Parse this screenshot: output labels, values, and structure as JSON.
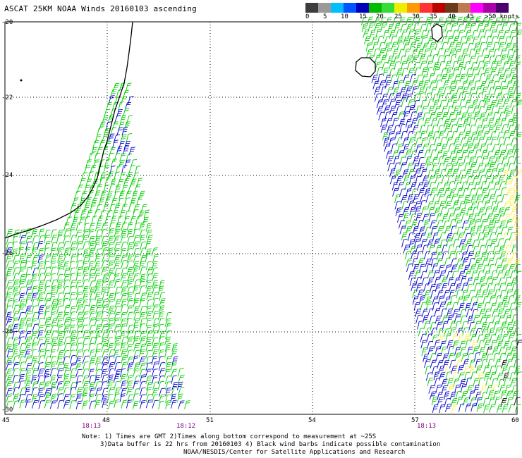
{
  "title": "ASCAT 25KM NOAA Winds 20160103 ascending",
  "legend": {
    "ticks": [
      "0",
      "5",
      "10",
      "15",
      "20",
      "25",
      "30",
      "35",
      "40",
      "45",
      ">50 knots"
    ],
    "colors": [
      "#3d3d3d",
      "#9a9a9a",
      "#00bfff",
      "#0055ff",
      "#0000bb",
      "#00bb00",
      "#33dd33",
      "#eeee00",
      "#ff9900",
      "#ff3333",
      "#bb0000",
      "#6b3a18",
      "#c07850",
      "#ff00ff",
      "#aa00aa",
      "#4b006e"
    ]
  },
  "axes": {
    "y_labels": [
      "-20",
      "-22",
      "-24",
      "-26",
      "-28",
      "-30"
    ],
    "x_labels": [
      "45",
      "48",
      "51",
      "54",
      "57",
      "60"
    ]
  },
  "times": [
    "18:13",
    "18:12",
    "18:13"
  ],
  "notes": {
    "line1": "Note: 1) Times are GMT 2)Times along bottom correspond to measurement at ~25S",
    "line2": "3)Data buffer is 22 hrs from 20160103 4) Black wind barbs indicate possible contamination",
    "line3": "NOAA/NESDIS/Center for Satellite Applications and Research"
  },
  "colors": {
    "barb_green": "#00cc00",
    "barb_blue": "#0000cc",
    "barb_yellow": "#ffee44",
    "barb_black": "#000000",
    "grid": "#000000"
  }
}
